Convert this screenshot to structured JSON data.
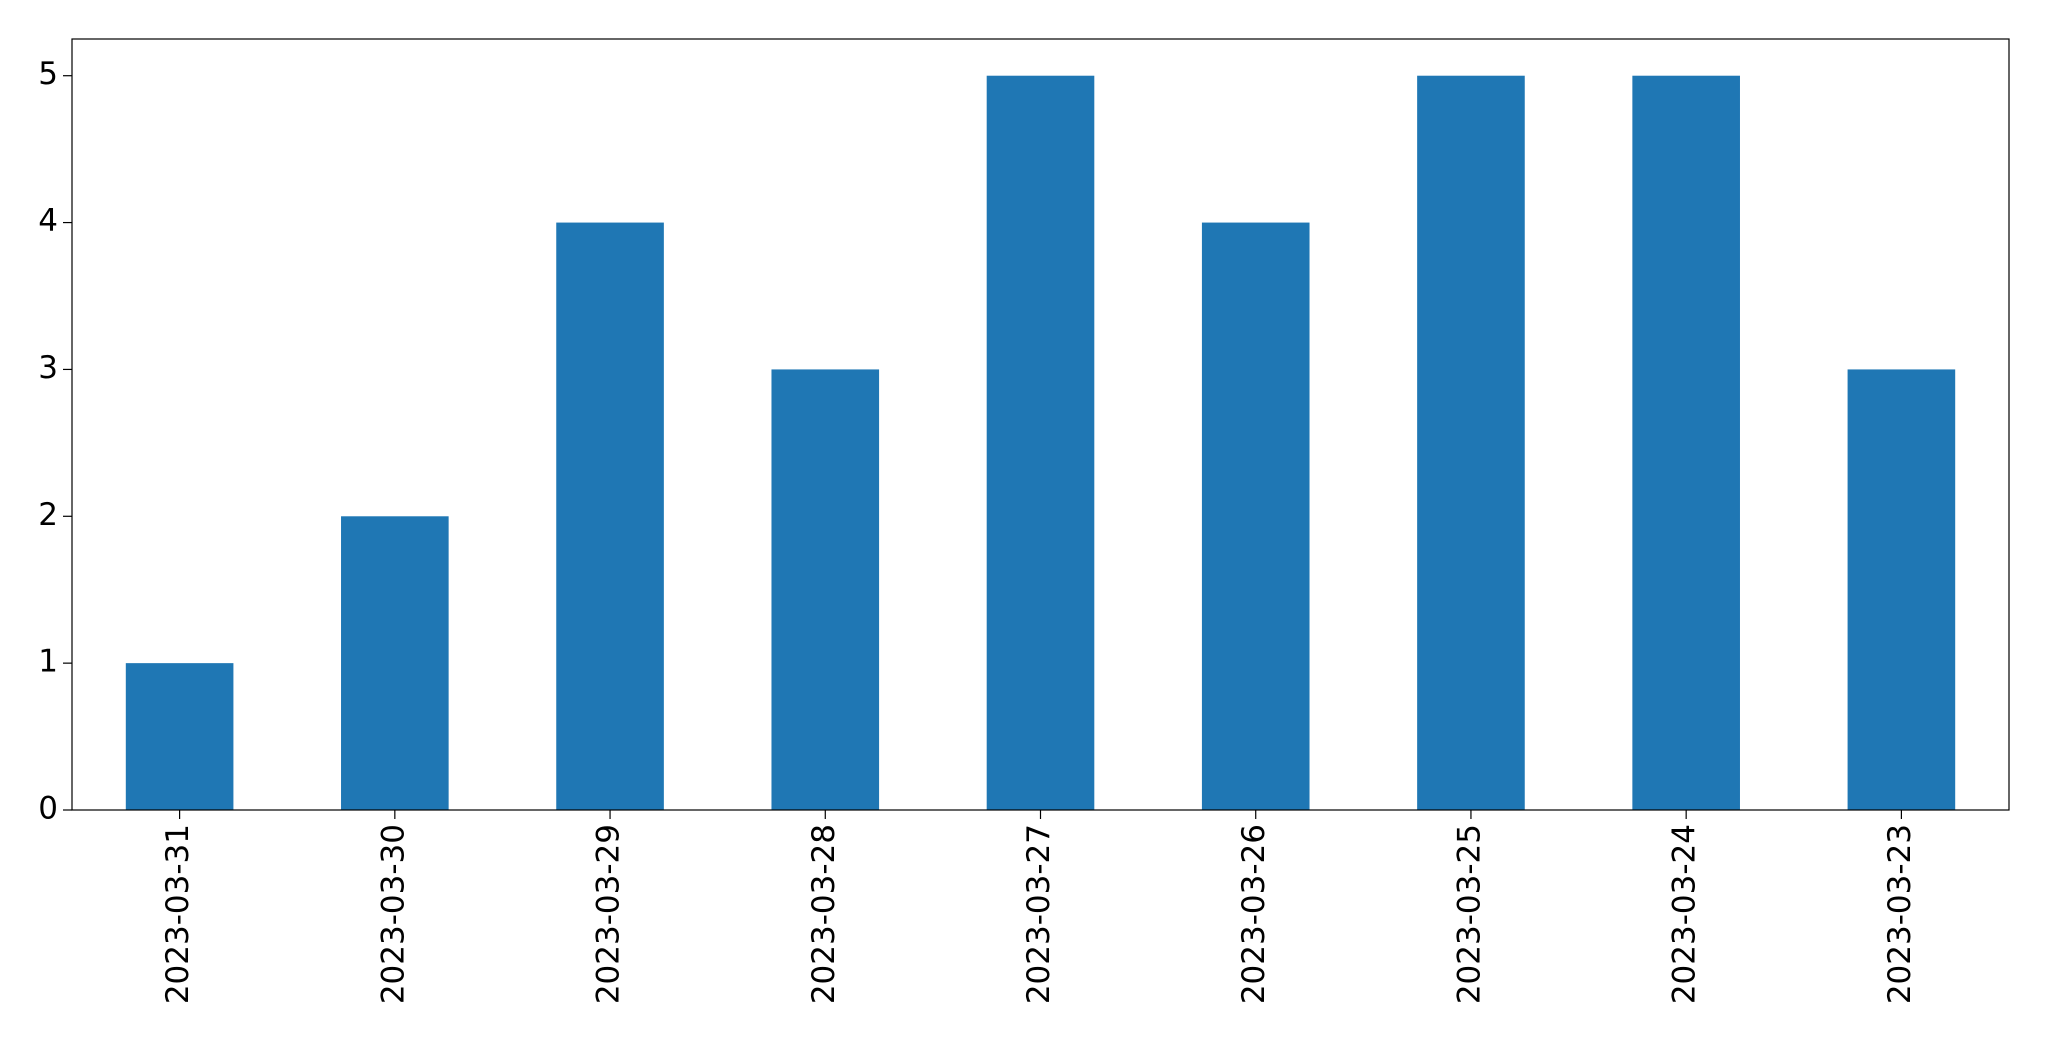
{
  "chart_data": {
    "type": "bar",
    "categories": [
      "2023-03-31",
      "2023-03-30",
      "2023-03-29",
      "2023-03-28",
      "2023-03-27",
      "2023-03-26",
      "2023-03-25",
      "2023-03-24",
      "2023-03-23"
    ],
    "values": [
      1,
      2,
      4,
      3,
      5,
      4,
      5,
      5,
      3
    ],
    "color": "#1f77b4",
    "ylim": [
      0,
      5.25
    ],
    "yticks": [
      0,
      1,
      2,
      3,
      4,
      5
    ],
    "grid": false
  }
}
